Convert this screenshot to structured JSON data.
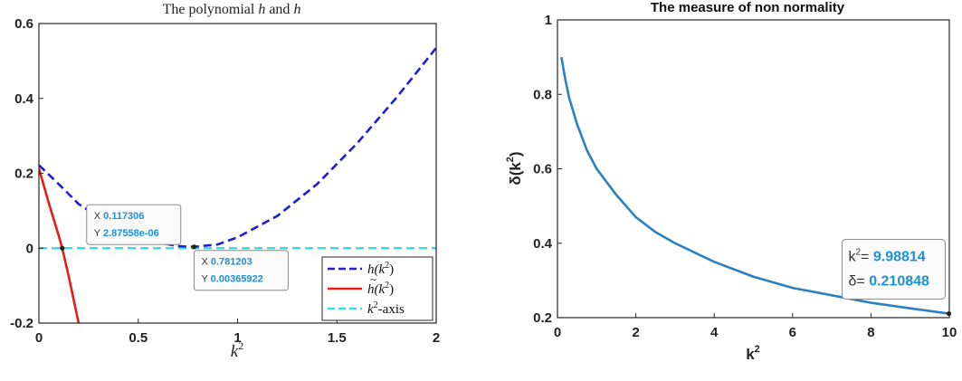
{
  "chart_data": [
    {
      "type": "line",
      "title": "The polynomial h and h",
      "title_parts": {
        "prefix": "The polynomial ",
        "var1": "h",
        "mid": " and ",
        "var2": "h"
      },
      "xlabel": "k",
      "xlabel_sup": "2",
      "ylabel": "",
      "xlim": [
        0,
        2
      ],
      "ylim": [
        -0.2,
        0.6
      ],
      "xticks": [
        0,
        0.5,
        1,
        1.5,
        2
      ],
      "xtick_labels": [
        "0",
        "0.5",
        "1",
        "1.5",
        "2"
      ],
      "yticks": [
        -0.2,
        0,
        0.2,
        0.4,
        0.6
      ],
      "ytick_labels": [
        "-0.2",
        "0",
        "0.2",
        "0.4",
        "0.6"
      ],
      "grid": false,
      "legend_position": "bottom-right",
      "series": [
        {
          "name": "h(k2)",
          "legend_text": "h(k",
          "legend_sup": "2",
          "legend_tail": ")",
          "color": "#1f1fd6",
          "style": "dashed",
          "x": [
            0,
            0.117306,
            0.2,
            0.3,
            0.4,
            0.5,
            0.6,
            0.7,
            0.781203,
            0.9,
            1.0,
            1.2,
            1.4,
            1.6,
            1.8,
            2.0
          ],
          "y": [
            0.222,
            0.162,
            0.118,
            0.084,
            0.055,
            0.032,
            0.015,
            0.0055,
            0.00365922,
            0.01,
            0.029,
            0.086,
            0.171,
            0.279,
            0.402,
            0.535
          ]
        },
        {
          "name": "h~(k2)",
          "legend_text": "h(k",
          "legend_sup": "2",
          "legend_tail": ")",
          "color": "#e81a1a",
          "style": "solid",
          "x": [
            0,
            0.05,
            0.1,
            0.117306,
            0.15,
            0.2
          ],
          "y": [
            0.213,
            0.12,
            0.033,
            2.87558e-06,
            -0.075,
            -0.2
          ]
        },
        {
          "name": "k2-axis",
          "legend_text": "k",
          "legend_sup": "2",
          "legend_tail": "-axis",
          "color": "#33e0e0",
          "style": "dashed",
          "x": [
            0,
            2
          ],
          "y": [
            0,
            0
          ]
        }
      ],
      "datatips": [
        {
          "x_label": "X",
          "x_value": "0.117306",
          "y_label": "Y",
          "y_value": "2.87558e-06",
          "x": 0.117306,
          "y": 2.87558e-06
        },
        {
          "x_label": "X",
          "x_value": "0.781203",
          "y_label": "Y",
          "y_value": "0.00365922",
          "x": 0.781203,
          "y": 0.00365922
        }
      ]
    },
    {
      "type": "line",
      "title": "The measure of non normality",
      "xlabel": "k",
      "xlabel_sup": "2",
      "ylabel": "δ(k",
      "ylabel_sup": "2",
      "ylabel_tail": ")",
      "xlim": [
        0,
        10
      ],
      "ylim": [
        0.2,
        1
      ],
      "xticks": [
        0,
        2,
        4,
        6,
        8,
        10
      ],
      "xtick_labels": [
        "0",
        "2",
        "4",
        "6",
        "8",
        "10"
      ],
      "yticks": [
        0.2,
        0.4,
        0.6,
        0.8,
        1
      ],
      "ytick_labels": [
        "0.2",
        "0.4",
        "0.6",
        "0.8",
        "1"
      ],
      "grid": false,
      "series": [
        {
          "color": "#2a80c2",
          "style": "solid",
          "x": [
            0.1,
            0.2,
            0.3,
            0.5,
            0.75,
            1,
            1.5,
            2,
            2.5,
            3,
            4,
            5,
            6,
            7,
            8,
            9,
            9.98814
          ],
          "y": [
            0.9,
            0.84,
            0.79,
            0.72,
            0.65,
            0.6,
            0.53,
            0.47,
            0.43,
            0.4,
            0.35,
            0.31,
            0.28,
            0.26,
            0.24,
            0.225,
            0.210848
          ]
        }
      ],
      "datatips": [
        {
          "x_label": "k",
          "x_label_sup": "2",
          "x_label_tail": "=",
          "x_value": "9.98814",
          "y_label": "δ=",
          "y_value": "0.210848",
          "x": 9.98814,
          "y": 0.210848
        }
      ]
    }
  ]
}
